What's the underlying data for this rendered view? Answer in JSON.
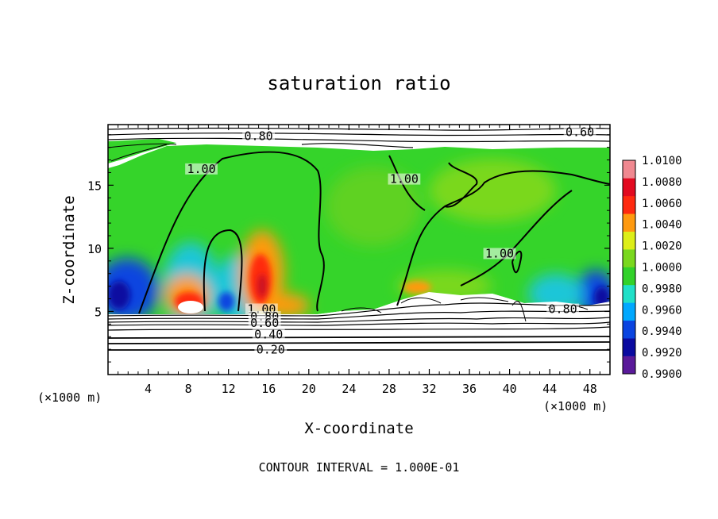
{
  "chart_data": {
    "type": "heatmap",
    "title": "saturation ratio",
    "xlabel": "X-coordinate",
    "ylabel": "Z-coordinate",
    "x_unit_left": "(×1000 m)",
    "x_unit_right": "(×1000 m)",
    "footer": "CONTOUR INTERVAL = 1.000E-01",
    "xlim": [
      0,
      50
    ],
    "ylim": [
      0,
      19.8
    ],
    "x_ticks": [
      4,
      8,
      12,
      16,
      20,
      24,
      28,
      32,
      36,
      40,
      44,
      48
    ],
    "y_ticks": [
      5,
      10,
      15
    ],
    "colorbar": {
      "levels": [
        0.99,
        0.992,
        0.994,
        0.996,
        0.998,
        1.0,
        1.002,
        1.004,
        1.006,
        1.008,
        1.01
      ],
      "labels": [
        "0.9900",
        "0.9920",
        "0.9940",
        "0.9960",
        "0.9980",
        "1.0000",
        "1.0020",
        "1.0040",
        "1.0060",
        "1.0080",
        "1.0100"
      ],
      "colors": [
        "#5a1a9a",
        "#0a0aa0",
        "#0a44e0",
        "#00a8ff",
        "#20e0c8",
        "#32d22a",
        "#7ad81e",
        "#ddee18",
        "#ff9a10",
        "#ff2a10",
        "#e20a20",
        "#f08890"
      ]
    },
    "contour_labels": [
      {
        "text": "0.80",
        "x": 15,
        "y": 18.7
      },
      {
        "text": "0.60",
        "x": 47,
        "y": 19.0
      },
      {
        "text": "1.00",
        "x": 9.3,
        "y": 16.1
      },
      {
        "text": "1.00",
        "x": 29.5,
        "y": 15.3
      },
      {
        "text": "1.00",
        "x": 39.0,
        "y": 9.4
      },
      {
        "text": "1.00",
        "x": 15.3,
        "y": 5.0
      },
      {
        "text": "0.80",
        "x": 15.6,
        "y": 4.4
      },
      {
        "text": "0.60",
        "x": 15.6,
        "y": 3.9
      },
      {
        "text": "0.40",
        "x": 16.0,
        "y": 3.0
      },
      {
        "text": "0.20",
        "x": 16.2,
        "y": 1.8
      },
      {
        "text": "0.80",
        "x": 45.3,
        "y": 5.0
      }
    ]
  }
}
